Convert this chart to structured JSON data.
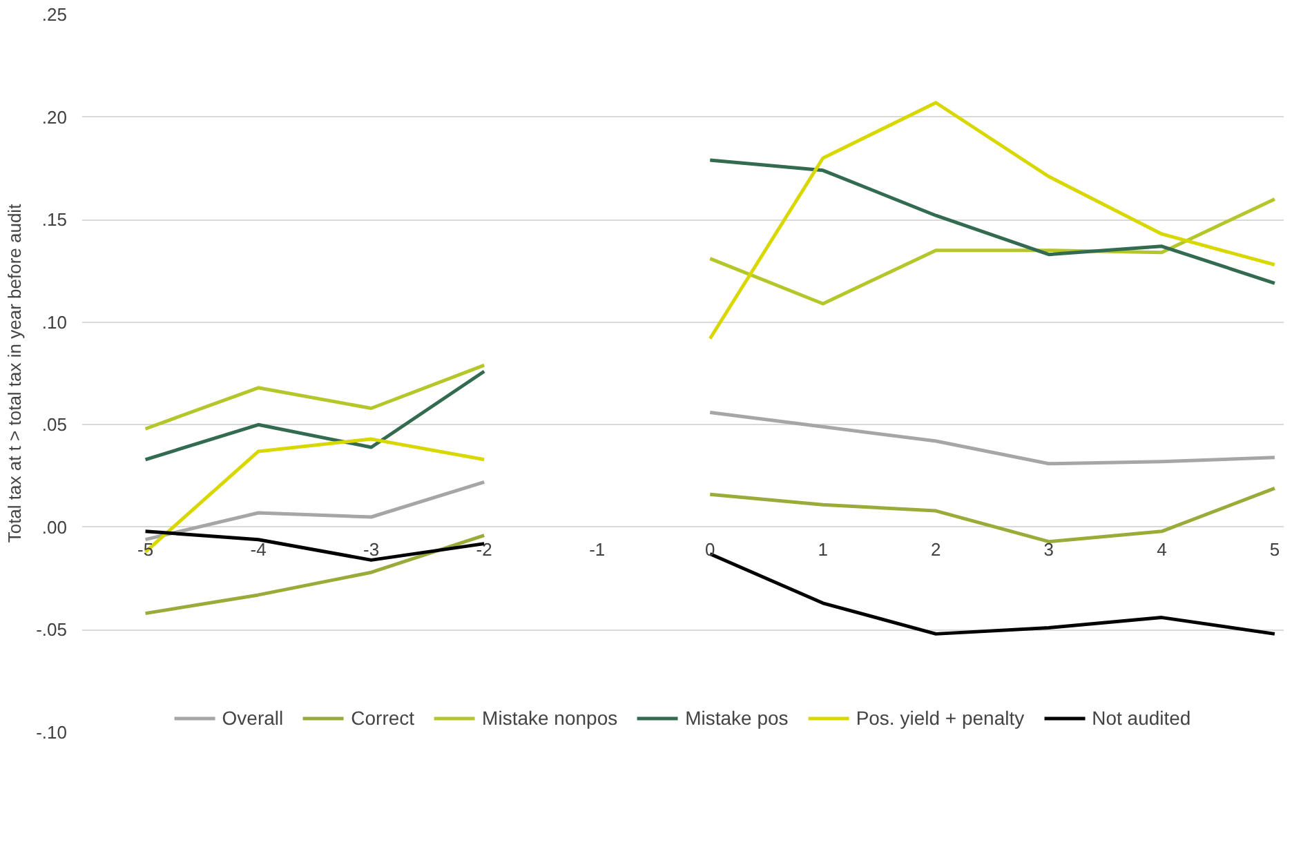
{
  "chart_data": {
    "type": "line",
    "ylabel": "Total tax at t > total tax in year before audit",
    "categories": [
      "-5",
      "-4",
      "-3",
      "-2",
      "-1",
      "0",
      "1",
      "2",
      "3",
      "4",
      "5"
    ],
    "ylim": [
      -0.1,
      0.25
    ],
    "yticks": [
      {
        "value": -0.1,
        "label": "-.10"
      },
      {
        "value": -0.05,
        "label": "-.05"
      },
      {
        "value": 0,
        "label": ".00"
      },
      {
        "value": 0.05,
        "label": ".05"
      },
      {
        "value": 0.1,
        "label": ".10"
      },
      {
        "value": 0.15,
        "label": ".15"
      },
      {
        "value": 0.2,
        "label": ".20"
      },
      {
        "value": 0.25,
        "label": ".25"
      }
    ],
    "grid": "y",
    "legend": "bottom",
    "marker": "none",
    "line_style": "solid",
    "series": [
      {
        "name": "Overall",
        "color": "#a6a6a6",
        "values": [
          -0.006,
          0.007,
          0.005,
          0.022,
          null,
          0.056,
          0.049,
          0.042,
          0.031,
          0.032,
          0.034
        ]
      },
      {
        "name": "Correct",
        "color": "#9aab3a",
        "values": [
          -0.042,
          -0.033,
          -0.022,
          -0.004,
          null,
          0.016,
          0.011,
          0.008,
          -0.007,
          -0.002,
          0.019
        ]
      },
      {
        "name": "Mistake nonpos",
        "color": "#b5c62a",
        "values": [
          0.048,
          0.068,
          0.058,
          0.079,
          null,
          0.131,
          0.109,
          0.135,
          0.135,
          0.134,
          0.16
        ]
      },
      {
        "name": "Mistake pos",
        "color": "#336b50",
        "values": [
          0.033,
          0.05,
          0.039,
          0.076,
          null,
          0.179,
          0.174,
          0.152,
          0.133,
          0.137,
          0.119
        ]
      },
      {
        "name": "Pos. yield + penalty",
        "color": "#d8d800",
        "values": [
          -0.012,
          0.037,
          0.043,
          0.033,
          null,
          0.092,
          0.18,
          0.207,
          0.171,
          0.143,
          0.128
        ]
      },
      {
        "name": "Not audited",
        "color": "#000000",
        "values": [
          -0.002,
          -0.006,
          -0.016,
          -0.008,
          null,
          -0.013,
          -0.037,
          -0.052,
          -0.049,
          -0.044,
          -0.052
        ]
      }
    ]
  }
}
